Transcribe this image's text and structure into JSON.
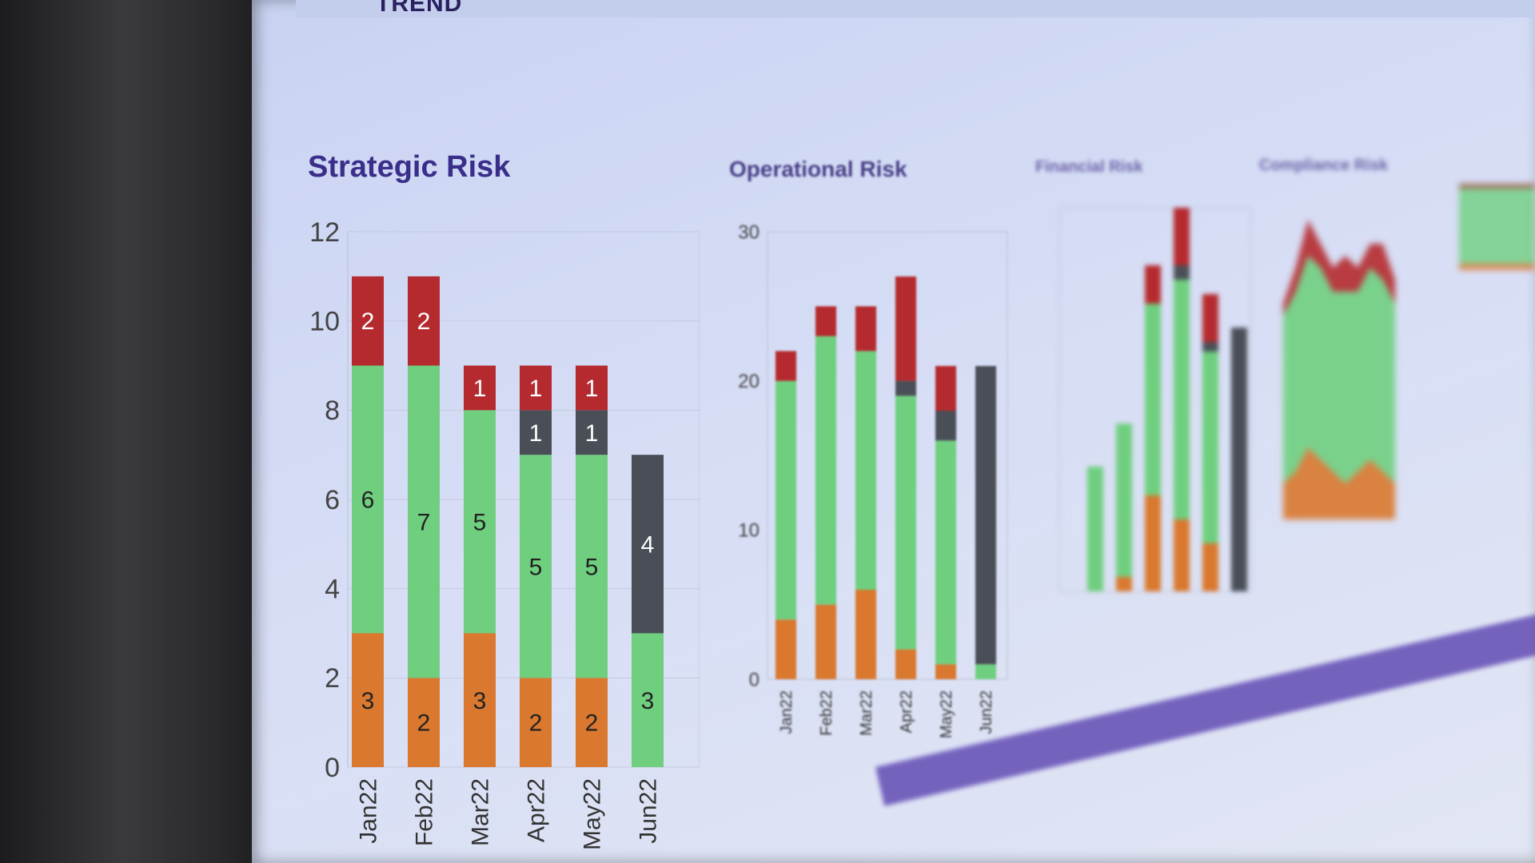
{
  "header": {
    "title": "TREND"
  },
  "colors": {
    "red": "#b52a2e",
    "green": "#6fcf7f",
    "orange": "#d9782e",
    "dark": "#4a4f57",
    "title": "#3a2e8a"
  },
  "chart_data": [
    {
      "type": "bar",
      "stacked": true,
      "title": "Strategic Risk",
      "categories": [
        "Jan22",
        "Feb22",
        "Mar22",
        "Apr22",
        "May22",
        "Jun22"
      ],
      "ylim": [
        0,
        12
      ],
      "yticks": [
        0,
        2,
        4,
        6,
        8,
        10,
        12
      ],
      "grid": true,
      "series": [
        {
          "color": "orange",
          "values": [
            3,
            2,
            3,
            2,
            2,
            0
          ]
        },
        {
          "color": "green",
          "values": [
            6,
            7,
            5,
            5,
            5,
            3
          ]
        },
        {
          "color": "dark",
          "values": [
            0,
            0,
            0,
            1,
            1,
            4
          ]
        },
        {
          "color": "red",
          "values": [
            2,
            2,
            1,
            1,
            1,
            0
          ]
        }
      ]
    },
    {
      "type": "bar",
      "stacked": true,
      "title": "Operational Risk",
      "categories": [
        "Jan22",
        "Feb22",
        "Mar22",
        "Apr22",
        "May22",
        "Jun22"
      ],
      "ylim": [
        0,
        30
      ],
      "yticks": [
        0,
        10,
        20,
        30
      ],
      "series": [
        {
          "color": "orange",
          "values": [
            4,
            5,
            6,
            2,
            1,
            0
          ]
        },
        {
          "color": "green",
          "values": [
            16,
            18,
            16,
            17,
            15,
            1
          ]
        },
        {
          "color": "dark",
          "values": [
            0,
            0,
            0,
            1,
            2,
            20
          ]
        },
        {
          "color": "red",
          "values": [
            2,
            2,
            3,
            7,
            3,
            0
          ]
        }
      ]
    },
    {
      "type": "bar",
      "stacked": true,
      "title": "Financial Risk",
      "categories": [
        "Jan22",
        "Feb22",
        "Mar22",
        "Apr22",
        "May22",
        "Jun22"
      ],
      "ylim": [
        0,
        8
      ],
      "series": [
        {
          "color": "orange",
          "values": [
            0,
            0.3,
            2,
            1.5,
            1,
            0
          ]
        },
        {
          "color": "green",
          "values": [
            2.6,
            3.2,
            4,
            5,
            4,
            0
          ]
        },
        {
          "color": "dark",
          "values": [
            0,
            0,
            0,
            0.3,
            0.2,
            5.5
          ]
        },
        {
          "color": "red",
          "values": [
            0,
            0,
            0.8,
            1.2,
            1,
            0
          ]
        }
      ]
    },
    {
      "type": "area",
      "stacked": true,
      "title": "Compliance Risk",
      "x": [
        1,
        2,
        3,
        4,
        5,
        6,
        7,
        8,
        9,
        10
      ],
      "series": [
        {
          "color": "orange",
          "values": [
            3,
            4,
            6,
            5,
            4,
            3,
            4,
            5,
            4,
            3
          ]
        },
        {
          "color": "green",
          "values": [
            14,
            15,
            16,
            16,
            15,
            16,
            15,
            16,
            16,
            15
          ]
        },
        {
          "color": "red",
          "values": [
            1,
            2,
            3,
            2,
            2,
            3,
            2,
            2,
            3,
            2
          ]
        }
      ]
    }
  ]
}
